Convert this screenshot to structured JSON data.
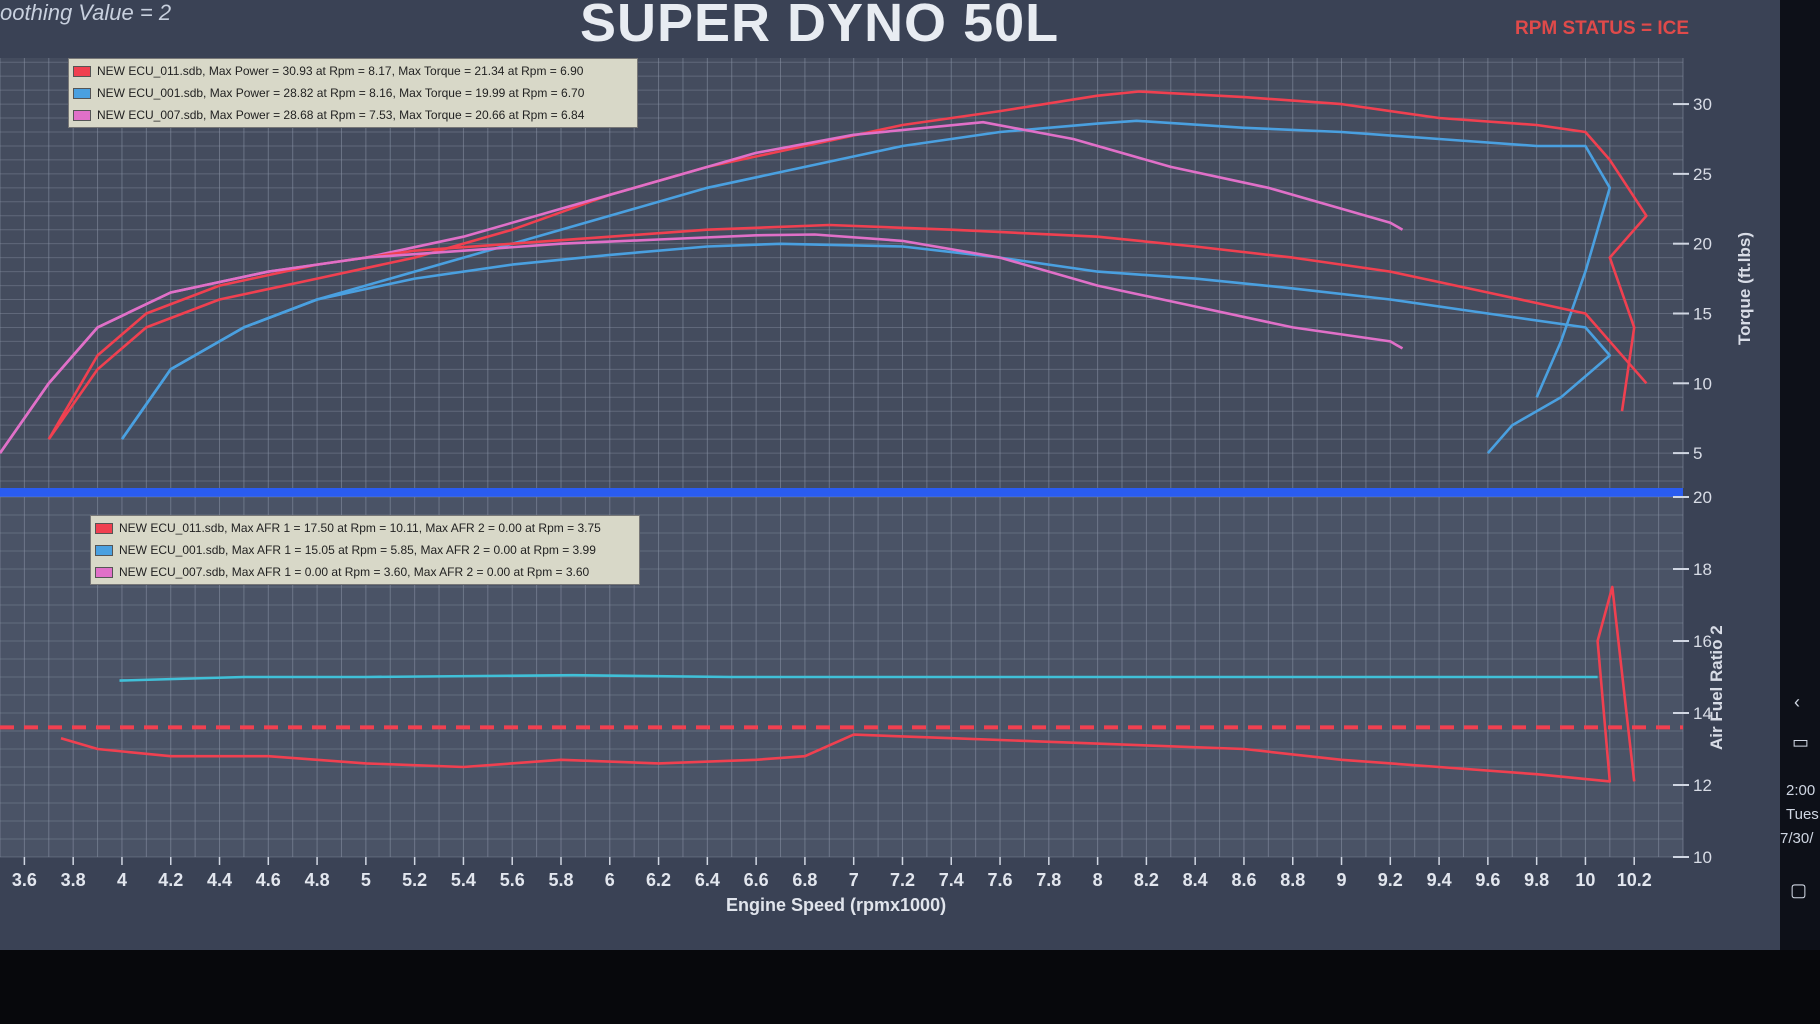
{
  "window": {
    "smoothing_text": "oothing Value = 2",
    "title": "SUPER DYNO 50L",
    "rpm_status": "RPM STATUS = ICE"
  },
  "taskbar": {
    "time": "2:00",
    "day": "Tues",
    "date": "7/30/"
  },
  "colors": {
    "ecu_011": "#f04050",
    "ecu_001": "#4aa0e0",
    "ecu_007": "#e070c8",
    "ecu_001_afr": "#40c0d8",
    "grid": "#8a93a6",
    "separator": "#2a5cf0"
  },
  "chart_data": [
    {
      "type": "line",
      "title": "",
      "xlabel": "Engine Speed (rpmx1000)",
      "ylabel": "Torque (ft.lbs)",
      "xlim": [
        3.5,
        10.4
      ],
      "ylim": [
        2.5,
        33.3
      ],
      "yticks": [
        5,
        10,
        15,
        20,
        25,
        30
      ],
      "grid": true,
      "legend_position": "top-left",
      "legend": [
        "NEW ECU_011.sdb, Max Power = 30.93 at Rpm = 8.17, Max Torque = 21.34 at Rpm = 6.90",
        "NEW ECU_001.sdb, Max Power = 28.82 at Rpm = 8.16, Max Torque = 19.99 at Rpm = 6.70",
        "NEW ECU_007.sdb, Max Power = 28.68 at Rpm = 7.53, Max Torque = 20.66 at Rpm = 6.84"
      ],
      "series": [
        {
          "name": "NEW ECU_011.sdb power",
          "color": "#f04050",
          "x": [
            3.7,
            3.9,
            4.1,
            4.4,
            4.8,
            5.2,
            5.6,
            6,
            6.4,
            6.8,
            7.2,
            7.6,
            8,
            8.17,
            8.6,
            9,
            9.4,
            9.8,
            10,
            10.1,
            10.25,
            10.1,
            10.2,
            10.15
          ],
          "y": [
            6,
            11,
            14,
            16,
            17.5,
            19,
            21,
            23.5,
            25.5,
            27,
            28.5,
            29.5,
            30.6,
            30.9,
            30.5,
            30,
            29,
            28.5,
            28,
            26,
            22,
            19,
            14,
            8
          ]
        },
        {
          "name": "NEW ECU_001.sdb power",
          "color": "#4aa0e0",
          "x": [
            4,
            4.2,
            4.5,
            4.8,
            5.2,
            5.6,
            6,
            6.4,
            6.8,
            7.2,
            7.6,
            8,
            8.16,
            8.6,
            9,
            9.4,
            9.8,
            10,
            10.1,
            10.0,
            9.9,
            9.8
          ],
          "y": [
            6,
            11,
            14,
            16,
            18,
            20,
            22,
            24,
            25.5,
            27,
            28,
            28.6,
            28.8,
            28.3,
            28,
            27.5,
            27,
            27,
            24,
            18,
            13,
            9
          ]
        },
        {
          "name": "NEW ECU_007.sdb power",
          "color": "#e070c8",
          "x": [
            3.5,
            3.7,
            3.9,
            4.2,
            4.6,
            5,
            5.4,
            5.8,
            6.2,
            6.6,
            7,
            7.53,
            7.9,
            8.3,
            8.7,
            9,
            9.2,
            9.25
          ],
          "y": [
            5,
            10,
            14,
            16.5,
            18,
            19,
            20.5,
            22.5,
            24.5,
            26.5,
            27.8,
            28.7,
            27.5,
            25.5,
            24,
            22.5,
            21.5,
            21
          ]
        },
        {
          "name": "NEW ECU_011.sdb torque",
          "color": "#f04050",
          "x": [
            3.7,
            3.9,
            4.1,
            4.4,
            4.8,
            5.2,
            5.6,
            6,
            6.4,
            6.9,
            7.4,
            8,
            8.4,
            8.8,
            9.2,
            9.6,
            10,
            10.2,
            10.25
          ],
          "y": [
            6,
            12,
            15,
            17,
            18.5,
            19.5,
            20,
            20.5,
            21,
            21.34,
            21,
            20.5,
            19.8,
            19,
            18,
            16.5,
            15,
            11,
            10
          ]
        },
        {
          "name": "NEW ECU_001.sdb torque",
          "color": "#4aa0e0",
          "x": [
            4,
            4.2,
            4.5,
            4.8,
            5.2,
            5.6,
            6,
            6.4,
            6.7,
            7.2,
            7.6,
            8,
            8.4,
            8.8,
            9.2,
            9.6,
            10,
            10.1,
            9.9,
            9.7,
            9.6
          ],
          "y": [
            6,
            11,
            14,
            16,
            17.5,
            18.5,
            19.2,
            19.8,
            19.99,
            19.8,
            19,
            18,
            17.5,
            16.8,
            16,
            15,
            14,
            12,
            9,
            7,
            5
          ]
        },
        {
          "name": "NEW ECU_007.sdb torque",
          "color": "#e070c8",
          "x": [
            3.5,
            3.7,
            3.9,
            4.2,
            4.6,
            5,
            5.4,
            5.8,
            6.2,
            6.6,
            6.84,
            7.2,
            7.6,
            8,
            8.4,
            8.8,
            9.2,
            9.25
          ],
          "y": [
            5,
            10,
            14,
            16.5,
            18,
            19,
            19.5,
            20,
            20.3,
            20.6,
            20.66,
            20.2,
            19,
            17,
            15.5,
            14,
            13,
            12.5
          ]
        }
      ]
    },
    {
      "type": "line",
      "title": "",
      "xlabel": "Engine Speed (rpmx1000)",
      "ylabel": "Air Fuel Ratio 2",
      "xlim": [
        3.5,
        10.4
      ],
      "ylim": [
        10,
        20
      ],
      "yticks": [
        10,
        12,
        14,
        16,
        18,
        20
      ],
      "xticks": [
        3.6,
        3.8,
        4,
        4.2,
        4.4,
        4.6,
        4.8,
        5,
        5.2,
        5.4,
        5.6,
        5.8,
        6,
        6.2,
        6.4,
        6.6,
        6.8,
        7,
        7.2,
        7.4,
        7.6,
        7.8,
        8,
        8.2,
        8.4,
        8.6,
        8.8,
        9,
        9.2,
        9.4,
        9.6,
        9.8,
        10,
        10.2
      ],
      "xtick_labels": [
        "3.6",
        "3.8",
        "4",
        "4.2",
        "4.4",
        "4.6",
        "4.8",
        "5",
        "5.2",
        "5.4",
        "5.6",
        "5.8",
        "6",
        "6.2",
        "6.4",
        "6.6",
        "6.8",
        "7",
        "7.2",
        "7.4",
        "7.6",
        "7.8",
        "8",
        "8.2",
        "8.4",
        "8.6",
        "8.8",
        "9",
        "9.2",
        "9.4",
        "9.6",
        "9.8",
        "10",
        "10.2"
      ],
      "grid": true,
      "legend_position": "top-left",
      "legend": [
        "NEW ECU_011.sdb, Max AFR 1 = 17.50 at Rpm = 10.11, Max AFR 2 = 0.00 at Rpm = 3.75",
        "NEW ECU_001.sdb, Max AFR 1 = 15.05 at Rpm = 5.85, Max AFR 2 = 0.00 at Rpm = 3.99",
        "NEW ECU_007.sdb, Max AFR 1 = 0.00 at Rpm = 3.60, Max AFR 2 = 0.00 at Rpm = 3.60"
      ],
      "series": [
        {
          "name": "NEW ECU_011.sdb AFR",
          "color": "#f04050",
          "x": [
            3.75,
            3.9,
            4.2,
            4.6,
            5,
            5.4,
            5.8,
            6.2,
            6.6,
            6.8,
            7,
            7.4,
            7.8,
            8.2,
            8.6,
            9,
            9.4,
            9.8,
            10.1,
            10.05,
            10.11,
            10.2
          ],
          "y": [
            13.3,
            13,
            12.8,
            12.8,
            12.6,
            12.5,
            12.7,
            12.6,
            12.7,
            12.8,
            13.4,
            13.3,
            13.2,
            13.1,
            13,
            12.7,
            12.5,
            12.3,
            12.1,
            16,
            17.5,
            12.1
          ]
        },
        {
          "name": "NEW ECU_001.sdb AFR",
          "color": "#40c0d8",
          "x": [
            3.99,
            4.5,
            5,
            5.85,
            6.5,
            7,
            7.5,
            8,
            8.5,
            9,
            9.5,
            10.05
          ],
          "y": [
            14.9,
            15,
            15,
            15.05,
            15,
            15,
            15,
            15,
            15,
            15,
            15,
            15
          ]
        },
        {
          "name": "NEW ECU_011.sdb AFR 2 (dashed)",
          "color": "#f04050",
          "dashed": true,
          "x": [
            3.5,
            10.4
          ],
          "y": [
            13.6,
            13.6
          ]
        }
      ]
    }
  ]
}
